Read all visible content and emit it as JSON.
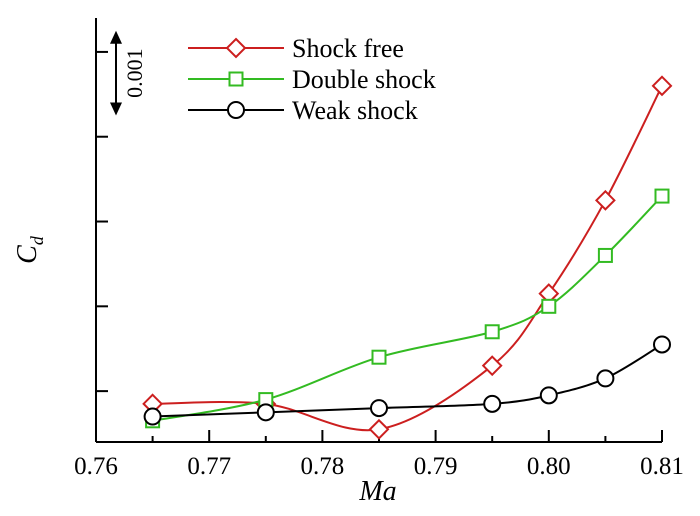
{
  "chart_data": {
    "type": "line",
    "xlabel": "Ma",
    "ylabel_main": "C",
    "ylabel_sub": "d",
    "xlim": [
      0.76,
      0.81
    ],
    "ylim": [
      -0.0006,
      0.0044
    ],
    "x_ticks": [
      0.76,
      0.77,
      0.78,
      0.79,
      0.8,
      0.81
    ],
    "x_tick_labels": [
      "0.76",
      "0.77",
      "0.78",
      "0.79",
      "0.80",
      "0.81"
    ],
    "y_ticks": [
      0.0,
      0.001,
      0.002,
      0.003,
      0.004
    ],
    "y_tick_labels_shown": false,
    "scale_bar": {
      "label": "0.001",
      "length": 0.001,
      "from": 0.00325
    },
    "legend_position": "top-center",
    "grid": false,
    "series": [
      {
        "name": "Shock free",
        "color": "#cc1f1f",
        "marker": "diamond",
        "x": [
          0.765,
          0.775,
          0.785,
          0.795,
          0.8,
          0.805,
          0.81
        ],
        "y": [
          -0.00015,
          -0.00015,
          -0.00045,
          0.0003,
          0.00115,
          0.00225,
          0.0036
        ]
      },
      {
        "name": "Double shock",
        "color": "#33bb22",
        "marker": "square",
        "x": [
          0.765,
          0.775,
          0.785,
          0.795,
          0.8,
          0.805,
          0.81
        ],
        "y": [
          -0.00035,
          -0.0001,
          0.0004,
          0.0007,
          0.001,
          0.0016,
          0.0023
        ]
      },
      {
        "name": "Weak shock",
        "color": "#000000",
        "marker": "circle",
        "x": [
          0.765,
          0.775,
          0.785,
          0.795,
          0.8,
          0.805,
          0.81
        ],
        "y": [
          -0.0003,
          -0.00025,
          -0.0002,
          -0.00015,
          -5e-05,
          0.00015,
          0.00055
        ]
      }
    ]
  }
}
